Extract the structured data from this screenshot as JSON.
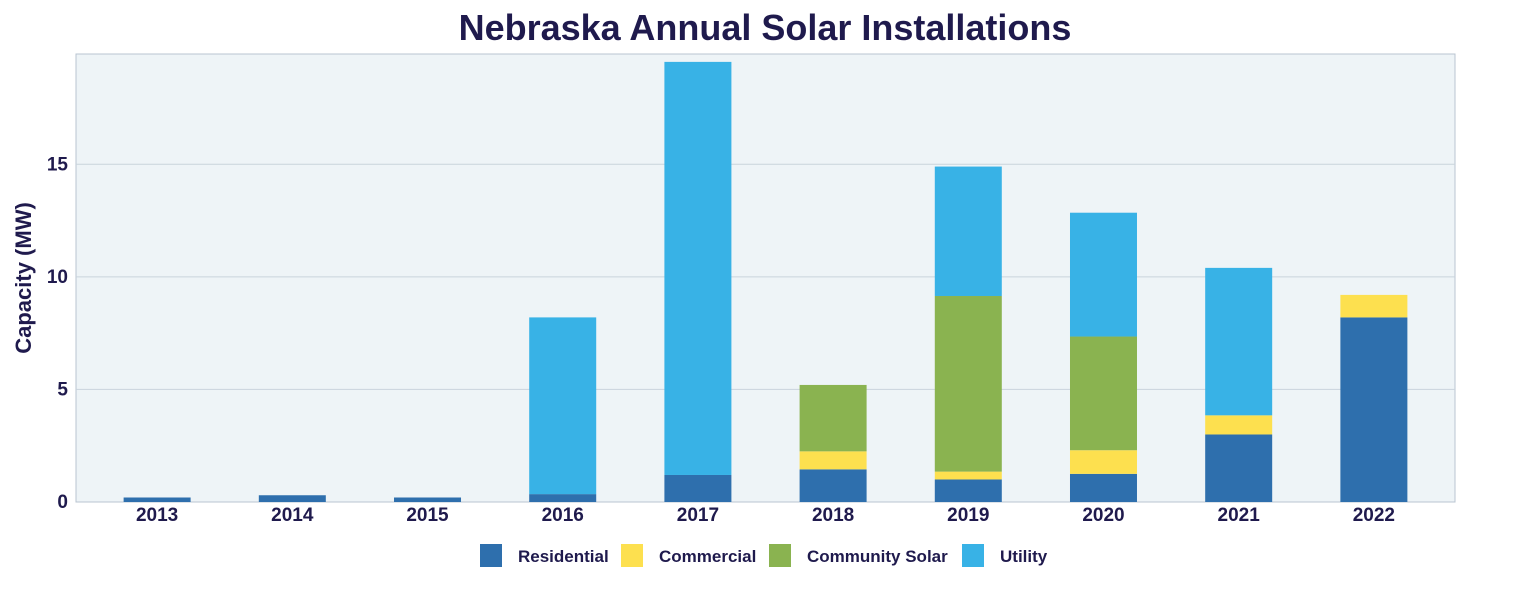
{
  "chart_data": {
    "type": "bar",
    "stacked": true,
    "title": "Nebraska Annual Solar Installations",
    "xlabel": "",
    "ylabel": "Capacity (MW)",
    "ylim": [
      0,
      19.9
    ],
    "yticks": [
      0,
      5,
      10,
      15
    ],
    "grid": true,
    "legend_position": "bottom",
    "categories": [
      "2013",
      "2014",
      "2015",
      "2016",
      "2017",
      "2018",
      "2019",
      "2020",
      "2021",
      "2022"
    ],
    "series": [
      {
        "name": "Residential",
        "color": "#2e6fad",
        "values": [
          0.2,
          0.3,
          0.2,
          0.35,
          1.2,
          1.45,
          1.0,
          1.25,
          3.0,
          8.2
        ]
      },
      {
        "name": "Commercial",
        "color": "#fde04f",
        "values": [
          0,
          0,
          0,
          0,
          0,
          0.8,
          0.35,
          1.05,
          0.85,
          1.0
        ]
      },
      {
        "name": "Community Solar",
        "color": "#8ab350",
        "values": [
          0,
          0,
          0,
          0,
          0,
          2.95,
          7.8,
          5.05,
          0,
          0
        ]
      },
      {
        "name": "Utility",
        "color": "#38b2e6",
        "values": [
          0,
          0,
          0,
          7.85,
          18.35,
          0,
          5.75,
          5.5,
          6.55,
          0
        ]
      }
    ]
  },
  "colors": {
    "plot_background": "#eef4f7",
    "grid": "#c9d3dc",
    "text": "#1f1a4d"
  }
}
